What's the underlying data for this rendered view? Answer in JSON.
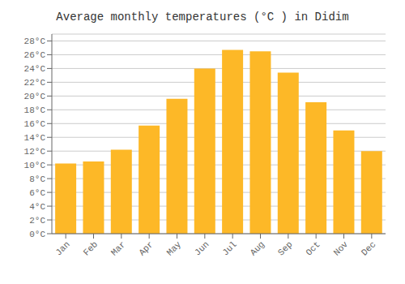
{
  "chart_data": {
    "type": "bar",
    "title": "Average monthly temperatures (°C ) in Didim",
    "categories": [
      "Jan",
      "Feb",
      "Mar",
      "Apr",
      "May",
      "Jun",
      "Jul",
      "Aug",
      "Sep",
      "Oct",
      "Nov",
      "Dec"
    ],
    "values": [
      10.2,
      10.5,
      12.2,
      15.7,
      19.6,
      24.0,
      26.7,
      26.5,
      23.4,
      19.1,
      15.0,
      12.0
    ],
    "color": "#FDB827",
    "ylim": [
      0,
      29
    ],
    "yticks": [
      {
        "value": 0,
        "label": "0°C"
      },
      {
        "value": 2,
        "label": "2°C"
      },
      {
        "value": 4,
        "label": "4°C"
      },
      {
        "value": 6,
        "label": "6°C"
      },
      {
        "value": 8,
        "label": "8°C"
      },
      {
        "value": 10,
        "label": "10°C"
      },
      {
        "value": 12,
        "label": "12°C"
      },
      {
        "value": 14,
        "label": "14°C"
      },
      {
        "value": 16,
        "label": "16°C"
      },
      {
        "value": 18,
        "label": "18°C"
      },
      {
        "value": 20,
        "label": "20°C"
      },
      {
        "value": 22,
        "label": "22°C"
      },
      {
        "value": 24,
        "label": "24°C"
      },
      {
        "value": 26,
        "label": "26°C"
      },
      {
        "value": 28,
        "label": "28°C"
      }
    ],
    "grid": true
  }
}
